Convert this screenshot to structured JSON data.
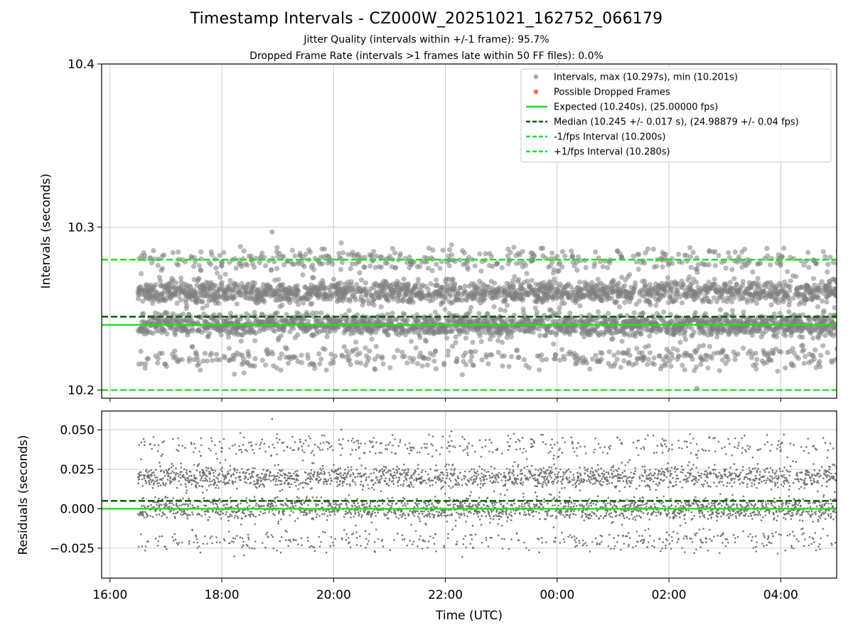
{
  "chart_data": [
    {
      "type": "scatter",
      "panel": "top",
      "title": "Timestamp Intervals - CZ000W_20251021_162752_066179",
      "subtitle_lines": [
        "Jitter Quality (intervals within +/-1 frame): 95.7%",
        "Dropped Frame Rate (intervals >1 frames late within 50 FF files): 0.0%"
      ],
      "ylabel": "Intervals (seconds)",
      "ylim": [
        10.195,
        10.4
      ],
      "yticks": [
        10.2,
        10.3,
        10.4
      ],
      "ytick_labels": [
        "10.2",
        "10.3",
        "10.4"
      ],
      "grid": true,
      "legend_position": "top-right",
      "legend": [
        {
          "label": "Intervals, max (10.297s), min (10.201s)",
          "kind": "marker",
          "color": "#808080"
        },
        {
          "label": "Possible Dropped Frames",
          "kind": "marker",
          "color": "#f06060"
        },
        {
          "label": "Expected (10.240s), (25.00000 fps)",
          "kind": "line",
          "style": "solid",
          "color": "#22dd22"
        },
        {
          "label": "Median (10.245 +/- 0.017 s), (24.98879 +/- 0.04 fps)",
          "kind": "line",
          "style": "dashed",
          "color": "#006400"
        },
        {
          "label": "-1/fps Interval (10.200s)",
          "kind": "line",
          "style": "dashed",
          "color": "#22dd22"
        },
        {
          "label": "+1/fps Interval (10.280s)",
          "kind": "line",
          "style": "dashed",
          "color": "#22dd22"
        }
      ],
      "reference_lines": {
        "expected": 10.24,
        "median": 10.245,
        "minus_fps": 10.2,
        "plus_fps": 10.28
      },
      "series": {
        "x_range_hours": [
          16.5,
          29.2
        ],
        "levels": [
          10.24,
          10.26,
          10.22,
          10.28
        ],
        "level_weights": [
          0.42,
          0.38,
          0.1,
          0.1
        ],
        "spread": 0.0035,
        "count": 4450,
        "max": 10.297,
        "min": 10.201
      }
    },
    {
      "type": "scatter",
      "panel": "bottom",
      "ylabel": "Residuals (seconds)",
      "xlabel": "Time (UTC)",
      "ylim": [
        -0.044,
        0.062
      ],
      "yticks": [
        -0.025,
        0.0,
        0.025,
        0.05
      ],
      "ytick_labels": [
        "−0.025",
        "0.000",
        "0.025",
        "0.050"
      ],
      "grid": true,
      "reference_lines": {
        "expected": 0.0,
        "median": 0.005
      },
      "series": {
        "levels": [
          0.0,
          0.02,
          -0.02,
          0.04
        ],
        "level_weights": [
          0.42,
          0.38,
          0.1,
          0.1
        ],
        "spread": 0.0035,
        "count": 4450,
        "max": 0.057,
        "min": -0.039
      }
    }
  ],
  "x_axis": {
    "range_hours": [
      15.85,
      29.0
    ],
    "ticks_hours": [
      16,
      18,
      20,
      22,
      24,
      26,
      28
    ],
    "tick_labels": [
      "16:00",
      "18:00",
      "20:00",
      "22:00",
      "00:00",
      "02:00",
      "04:00"
    ]
  },
  "colors": {
    "points_top": "#808080",
    "points_bottom": "#707070",
    "expected": "#22dd22",
    "median": "#006400",
    "fps_bounds": "#22dd22",
    "dropped": "#f06060",
    "grid": "#b0b0b0"
  }
}
